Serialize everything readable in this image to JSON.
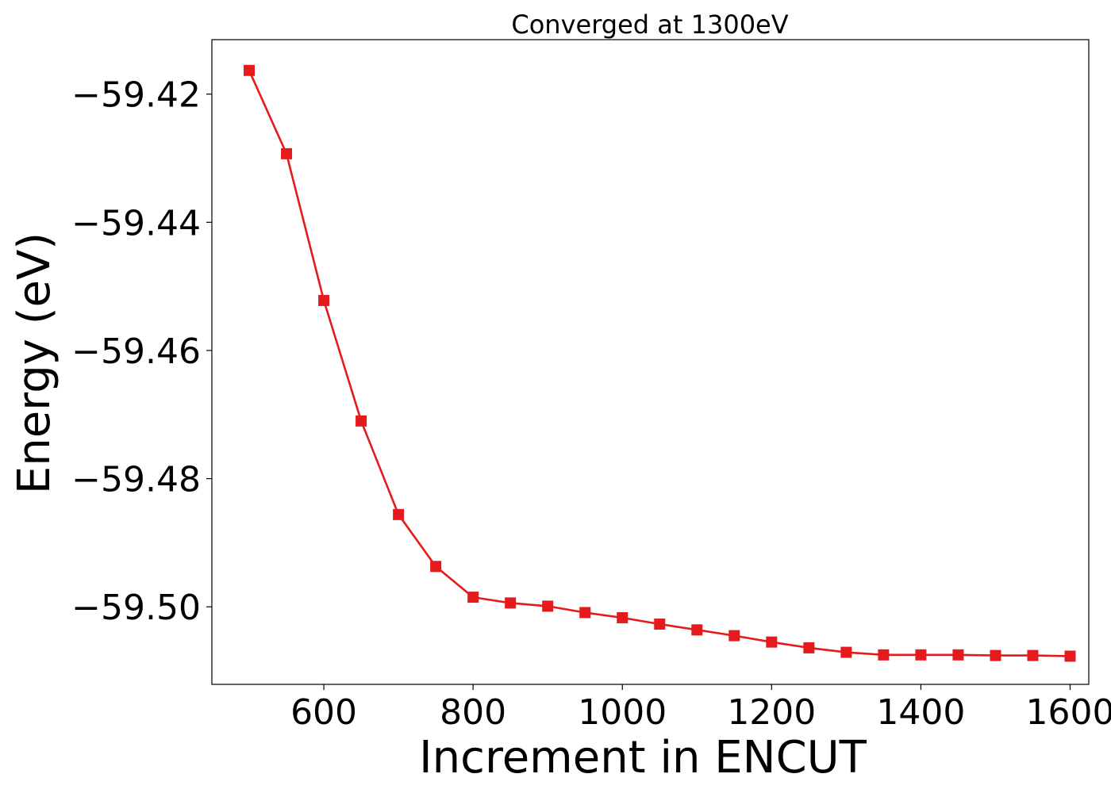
{
  "chart_data": {
    "type": "line",
    "title": "Converged at 1300eV",
    "xlabel": "Increment in ENCUT",
    "ylabel": "Energy (eV)",
    "xlim": [
      450,
      1625
    ],
    "ylim": [
      -59.5121,
      -59.4115
    ],
    "xticks": [
      600,
      800,
      1000,
      1200,
      1400,
      1600
    ],
    "xtick_labels": [
      "600",
      "800",
      "1000",
      "1200",
      "1400",
      "1600"
    ],
    "yticks": [
      -59.42,
      -59.44,
      -59.46,
      -59.48,
      -59.5
    ],
    "ytick_labels": [
      "−59.42",
      "−59.44",
      "−59.46",
      "−59.48",
      "−59.50"
    ],
    "grid": false,
    "series": [
      {
        "color": "#e41a1c",
        "marker": "square",
        "x": [
          500,
          550,
          600,
          650,
          700,
          750,
          800,
          850,
          900,
          950,
          1000,
          1050,
          1100,
          1150,
          1200,
          1250,
          1300,
          1350,
          1400,
          1450,
          1500,
          1550,
          1600
        ],
        "y": [
          -59.4163,
          -59.4293,
          -59.4522,
          -59.471,
          -59.4856,
          -59.4937,
          -59.4985,
          -59.4994,
          -59.4999,
          -59.5009,
          -59.5017,
          -59.5027,
          -59.5036,
          -59.5045,
          -59.5055,
          -59.5064,
          -59.5071,
          -59.5075,
          -59.5075,
          -59.5075,
          -59.5076,
          -59.5076,
          -59.5077
        ]
      }
    ]
  }
}
